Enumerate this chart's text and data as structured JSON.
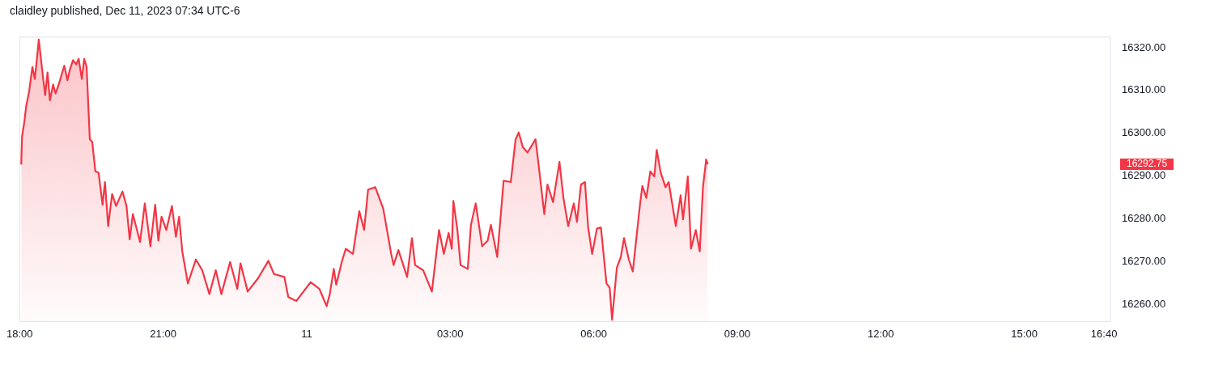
{
  "chart_data": {
    "type": "area",
    "title": "claidley published, Dec 11, 2023 07:34 UTC-6",
    "marker": "none",
    "series": [
      {
        "color": "#f23645",
        "x": [
          "2023-12-10T18:02",
          "2023-12-10T18:03",
          "2023-12-10T18:06",
          "2023-12-10T18:08",
          "2023-12-10T18:12",
          "2023-12-10T18:16",
          "2023-12-10T18:19",
          "2023-12-10T18:22",
          "2023-12-10T18:24",
          "2023-12-10T18:26",
          "2023-12-10T18:29",
          "2023-12-10T18:32",
          "2023-12-10T18:35",
          "2023-12-10T18:38",
          "2023-12-10T18:42",
          "2023-12-10T18:45",
          "2023-12-10T18:49",
          "2023-12-10T18:52",
          "2023-12-10T18:56",
          "2023-12-10T19:00",
          "2023-12-10T19:03",
          "2023-12-10T19:07",
          "2023-12-10T19:11",
          "2023-12-10T19:14",
          "2023-12-10T19:18",
          "2023-12-10T19:21",
          "2023-12-10T19:24",
          "2023-12-10T19:28",
          "2023-12-10T19:31",
          "2023-12-10T19:35",
          "2023-12-10T19:39",
          "2023-12-10T19:44",
          "2023-12-10T19:47",
          "2023-12-10T19:51",
          "2023-12-10T19:56",
          "2023-12-10T20:01",
          "2023-12-10T20:09",
          "2023-12-10T20:14",
          "2023-12-10T20:18",
          "2023-12-10T20:22",
          "2023-12-10T20:31",
          "2023-12-10T20:37",
          "2023-12-10T20:44",
          "2023-12-10T20:50",
          "2023-12-10T20:54",
          "2023-12-10T20:58",
          "2023-12-10T21:04",
          "2023-12-10T21:11",
          "2023-12-10T21:16",
          "2023-12-10T21:20",
          "2023-12-10T21:24",
          "2023-12-10T21:31",
          "2023-12-10T21:41",
          "2023-12-10T21:49",
          "2023-12-10T21:58",
          "2023-12-10T22:06",
          "2023-12-10T22:13",
          "2023-12-10T22:24",
          "2023-12-10T22:33",
          "2023-12-10T22:37",
          "2023-12-10T22:46",
          "2023-12-10T22:59",
          "2023-12-10T23:12",
          "2023-12-10T23:19",
          "2023-12-10T23:32",
          "2023-12-10T23:37",
          "2023-12-10T23:47",
          "2023-12-10T23:56",
          "2023-12-11T00:05",
          "2023-12-11T00:16",
          "2023-12-11T00:25",
          "2023-12-11T00:29",
          "2023-12-11T00:34",
          "2023-12-11T00:37",
          "2023-12-11T00:44",
          "2023-12-11T00:49",
          "2023-12-11T00:58",
          "2023-12-11T01:06",
          "2023-12-11T01:12",
          "2023-12-11T01:17",
          "2023-12-11T01:26",
          "2023-12-11T01:36",
          "2023-12-11T01:46",
          "2023-12-11T01:49",
          "2023-12-11T01:55",
          "2023-12-11T02:06",
          "2023-12-11T02:12",
          "2023-12-11T02:16",
          "2023-12-11T02:26",
          "2023-12-11T02:37",
          "2023-12-11T02:46",
          "2023-12-11T02:52",
          "2023-12-11T02:58",
          "2023-12-11T03:02",
          "2023-12-11T03:04",
          "2023-12-11T03:09",
          "2023-12-11T03:13",
          "2023-12-11T03:22",
          "2023-12-11T03:26",
          "2023-12-11T03:32",
          "2023-12-11T03:40",
          "2023-12-11T03:47",
          "2023-12-11T03:51",
          "2023-12-11T03:59",
          "2023-12-11T04:07",
          "2023-12-11T04:16",
          "2023-12-11T04:22",
          "2023-12-11T04:26",
          "2023-12-11T04:31",
          "2023-12-11T04:37",
          "2023-12-11T04:47",
          "2023-12-11T04:51",
          "2023-12-11T04:58",
          "2023-12-11T05:02",
          "2023-12-11T05:09",
          "2023-12-11T05:17",
          "2023-12-11T05:22",
          "2023-12-11T05:28",
          "2023-12-11T05:35",
          "2023-12-11T05:39",
          "2023-12-11T05:44",
          "2023-12-11T05:49",
          "2023-12-11T05:53",
          "2023-12-11T05:58",
          "2023-12-11T06:04",
          "2023-12-11T06:09",
          "2023-12-11T06:16",
          "2023-12-11T06:20",
          "2023-12-11T06:23",
          "2023-12-11T06:29",
          "2023-12-11T06:34",
          "2023-12-11T06:38",
          "2023-12-11T06:44",
          "2023-12-11T06:49",
          "2023-12-11T06:58",
          "2023-12-11T07:01",
          "2023-12-11T07:06",
          "2023-12-11T07:11",
          "2023-12-11T07:16",
          "2023-12-11T07:19",
          "2023-12-11T07:24",
          "2023-12-11T07:30",
          "2023-12-11T07:34",
          "2023-12-11T07:43",
          "2023-12-11T07:49",
          "2023-12-11T07:52",
          "2023-12-11T07:58",
          "2023-12-11T08:02",
          "2023-12-11T08:08",
          "2023-12-11T08:13",
          "2023-12-11T08:17",
          "2023-12-11T08:21",
          "2023-12-11T08:23"
        ],
        "values": [
          16292.7,
          16299.2,
          16302.8,
          16306.1,
          16309.9,
          16315.5,
          16312.7,
          16318.0,
          16321.9,
          16318.6,
          16313.6,
          16308.9,
          16314.2,
          16307.7,
          16311.4,
          16309.3,
          16311.4,
          16313.3,
          16315.8,
          16312.4,
          16314.9,
          16317.1,
          16316.1,
          16317.4,
          16312.7,
          16317.4,
          16315.5,
          16298.6,
          16298.0,
          16291.1,
          16290.8,
          16283.3,
          16288.6,
          16278.3,
          16285.8,
          16283.0,
          16286.4,
          16283.0,
          16275.2,
          16281.1,
          16274.6,
          16283.6,
          16273.6,
          16283.3,
          16274.9,
          16280.5,
          16277.4,
          16283.0,
          16275.8,
          16280.5,
          16272.4,
          16264.9,
          16270.5,
          16268.0,
          16262.4,
          16268.0,
          16262.4,
          16269.9,
          16263.6,
          16269.6,
          16263.0,
          16266.1,
          16270.2,
          16267.1,
          16266.4,
          16261.7,
          16260.8,
          16263.0,
          16265.2,
          16263.6,
          16259.6,
          16262.4,
          16268.3,
          16264.6,
          16269.9,
          16273.0,
          16271.8,
          16281.8,
          16277.4,
          16286.8,
          16287.4,
          16282.4,
          16271.8,
          16269.2,
          16272.7,
          16266.4,
          16275.5,
          16269.2,
          16268.0,
          16263.0,
          16277.4,
          16271.8,
          16276.7,
          16273.0,
          16284.2,
          16277.4,
          16269.2,
          16268.3,
          16278.6,
          16283.6,
          16273.6,
          16274.9,
          16278.6,
          16271.1,
          16288.9,
          16288.6,
          16298.6,
          16300.2,
          16296.8,
          16295.5,
          16298.6,
          16292.4,
          16281.1,
          16288.0,
          16283.9,
          16293.3,
          16284.9,
          16278.3,
          16283.6,
          16279.3,
          16288.0,
          16288.6,
          16278.0,
          16271.8,
          16277.7,
          16278.0,
          16264.9,
          16263.9,
          16256.4,
          16268.6,
          16271.1,
          16275.5,
          16270.5,
          16267.7,
          16283.3,
          16287.7,
          16284.9,
          16291.1,
          16289.9,
          16296.1,
          16290.8,
          16287.4,
          16288.6,
          16278.3,
          16285.5,
          16279.9,
          16289.9,
          16273.0,
          16277.4,
          16272.4,
          16287.4,
          16293.9,
          16292.75
        ]
      }
    ],
    "xlim": [
      "2023-12-10T18:00",
      "2023-12-11T16:48"
    ],
    "xticks": [
      {
        "value": "2023-12-10T18:00",
        "label": "18:00"
      },
      {
        "value": "2023-12-10T21:00",
        "label": "21:00"
      },
      {
        "value": "2023-12-11T00:00",
        "label": "11"
      },
      {
        "value": "2023-12-11T03:00",
        "label": "03:00"
      },
      {
        "value": "2023-12-11T06:00",
        "label": "06:00"
      },
      {
        "value": "2023-12-11T09:00",
        "label": "09:00"
      },
      {
        "value": "2023-12-11T12:00",
        "label": "12:00"
      },
      {
        "value": "2023-12-11T15:00",
        "label": "15:00"
      },
      {
        "value": "2023-12-11T16:40",
        "label": "16:40"
      }
    ],
    "ylim": [
      16256,
      16322.5
    ],
    "yticks": [
      {
        "value": 16260,
        "label": "16260.00"
      },
      {
        "value": 16270,
        "label": "16270.00"
      },
      {
        "value": 16280,
        "label": "16280.00"
      },
      {
        "value": 16290,
        "label": "16290.00"
      },
      {
        "value": 16300,
        "label": "16300.00"
      },
      {
        "value": 16310,
        "label": "16310.00"
      },
      {
        "value": 16320,
        "label": "16320.00"
      }
    ],
    "annotations": [
      "16292.75"
    ]
  }
}
